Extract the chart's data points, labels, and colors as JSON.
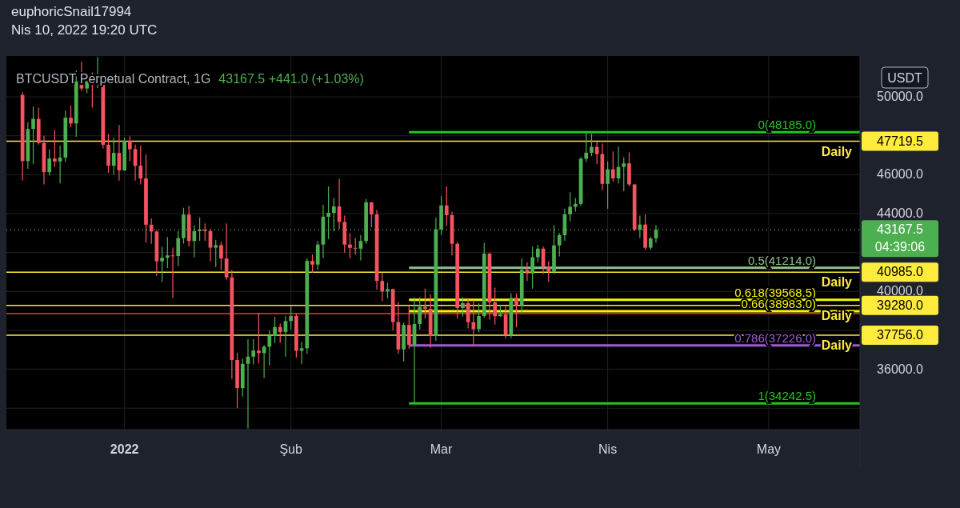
{
  "chart_data": {
    "type": "candlestick",
    "title": "BTCUSDT Perpetual Contract, 1G",
    "subtitle": "43167.5  +441.0 (+1.03%)",
    "x": [
      "2021-12-13",
      "2021-12-14",
      "2021-12-15",
      "2021-12-16",
      "2021-12-17",
      "2021-12-18",
      "2021-12-19",
      "2021-12-20",
      "2021-12-21",
      "2021-12-22",
      "2021-12-23",
      "2021-12-24",
      "2021-12-25",
      "2021-12-26",
      "2021-12-27",
      "2021-12-28",
      "2021-12-29",
      "2021-12-30",
      "2021-12-31",
      "2022-01-01",
      "2022-01-02",
      "2022-01-03",
      "2022-01-04",
      "2022-01-05",
      "2022-01-06",
      "2022-01-07",
      "2022-01-08",
      "2022-01-09",
      "2022-01-10",
      "2022-01-11",
      "2022-01-12",
      "2022-01-13",
      "2022-01-14",
      "2022-01-15",
      "2022-01-16",
      "2022-01-17",
      "2022-01-18",
      "2022-01-19",
      "2022-01-20",
      "2022-01-21",
      "2022-01-22",
      "2022-01-23",
      "2022-01-24",
      "2022-01-25",
      "2022-01-26",
      "2022-01-27",
      "2022-01-28",
      "2022-01-29",
      "2022-01-30",
      "2022-01-31",
      "2022-02-01",
      "2022-02-02",
      "2022-02-03",
      "2022-02-04",
      "2022-02-05",
      "2022-02-06",
      "2022-02-07",
      "2022-02-08",
      "2022-02-09",
      "2022-02-10",
      "2022-02-11",
      "2022-02-12",
      "2022-02-13",
      "2022-02-14",
      "2022-02-15",
      "2022-02-16",
      "2022-02-17",
      "2022-02-18",
      "2022-02-19",
      "2022-02-20",
      "2022-02-21",
      "2022-02-22",
      "2022-02-23",
      "2022-02-24",
      "2022-02-25",
      "2022-02-26",
      "2022-02-27",
      "2022-02-28",
      "2022-03-01",
      "2022-03-02",
      "2022-03-03",
      "2022-03-04",
      "2022-03-05",
      "2022-03-06",
      "2022-03-07",
      "2022-03-08",
      "2022-03-09",
      "2022-03-10",
      "2022-03-11",
      "2022-03-12",
      "2022-03-13",
      "2022-03-14",
      "2022-03-15",
      "2022-03-16",
      "2022-03-17",
      "2022-03-18",
      "2022-03-19",
      "2022-03-20",
      "2022-03-21",
      "2022-03-22",
      "2022-03-23",
      "2022-03-24",
      "2022-03-25",
      "2022-03-26",
      "2022-03-27",
      "2022-03-28",
      "2022-03-29",
      "2022-03-30",
      "2022-03-31",
      "2022-04-01",
      "2022-04-02",
      "2022-04-03",
      "2022-04-04",
      "2022-04-05",
      "2022-04-06",
      "2022-04-07",
      "2022-04-08",
      "2022-04-09",
      "2022-04-10"
    ],
    "ohlc": [
      [
        50100,
        50250,
        45700,
        46700
      ],
      [
        46700,
        48700,
        46300,
        48350
      ],
      [
        48350,
        49500,
        46550,
        48870
      ],
      [
        48870,
        49450,
        47550,
        47630
      ],
      [
        47630,
        48000,
        45500,
        46130
      ],
      [
        46130,
        47300,
        45950,
        46830
      ],
      [
        46830,
        48300,
        46400,
        46680
      ],
      [
        46680,
        47500,
        45550,
        46880
      ],
      [
        46880,
        49300,
        46650,
        48930
      ],
      [
        48930,
        49550,
        48450,
        48630
      ],
      [
        48630,
        51350,
        47950,
        50800
      ],
      [
        50800,
        51800,
        50300,
        50430
      ],
      [
        50430,
        51150,
        50200,
        50800
      ],
      [
        50800,
        51250,
        49450,
        50640
      ],
      [
        50640,
        52050,
        50450,
        50700
      ],
      [
        50700,
        50700,
        47350,
        47540
      ],
      [
        47540,
        48100,
        46100,
        46460
      ],
      [
        46460,
        47900,
        46000,
        47120
      ],
      [
        47120,
        48550,
        45700,
        46220
      ],
      [
        46220,
        47900,
        46200,
        47740
      ],
      [
        47740,
        47980,
        46700,
        47310
      ],
      [
        47310,
        47550,
        45700,
        46460
      ],
      [
        46460,
        47500,
        45500,
        45810
      ],
      [
        45810,
        47050,
        42500,
        43430
      ],
      [
        43430,
        43750,
        42450,
        43080
      ],
      [
        43080,
        43150,
        40800,
        41550
      ],
      [
        41550,
        42300,
        40500,
        41730
      ],
      [
        41730,
        42800,
        41200,
        41850
      ],
      [
        41850,
        42250,
        39650,
        41820
      ],
      [
        41820,
        43100,
        41300,
        42740
      ],
      [
        42740,
        44300,
        42450,
        43950
      ],
      [
        43950,
        44400,
        42300,
        42590
      ],
      [
        42590,
        43400,
        41750,
        43100
      ],
      [
        43100,
        43800,
        42600,
        43180
      ],
      [
        43180,
        43500,
        42600,
        43110
      ],
      [
        43110,
        43200,
        41550,
        42250
      ],
      [
        42250,
        42650,
        41250,
        42380
      ],
      [
        42380,
        42550,
        41100,
        41690
      ],
      [
        41690,
        43500,
        40600,
        40720
      ],
      [
        40720,
        41100,
        35500,
        36480
      ],
      [
        36480,
        36850,
        34000,
        35030
      ],
      [
        35030,
        36550,
        34600,
        36280
      ],
      [
        36280,
        37550,
        32950,
        36650
      ],
      [
        36650,
        37550,
        36250,
        36960
      ],
      [
        36960,
        38900,
        36300,
        36830
      ],
      [
        36830,
        37250,
        35550,
        37160
      ],
      [
        37160,
        38000,
        36200,
        37710
      ],
      [
        37710,
        38700,
        37350,
        38170
      ],
      [
        38170,
        38350,
        37350,
        37920
      ],
      [
        37920,
        38750,
        36650,
        38480
      ],
      [
        38480,
        39250,
        38050,
        38740
      ],
      [
        38740,
        38850,
        36600,
        36950
      ],
      [
        36950,
        37400,
        36250,
        37080
      ],
      [
        37080,
        41700,
        36800,
        41570
      ],
      [
        41570,
        41900,
        40950,
        41380
      ],
      [
        41380,
        42600,
        41100,
        42410
      ],
      [
        42410,
        44450,
        41700,
        43840
      ],
      [
        43840,
        45400,
        42700,
        44040
      ],
      [
        44040,
        44800,
        43100,
        44370
      ],
      [
        44370,
        45800,
        43200,
        43570
      ],
      [
        43570,
        43900,
        42000,
        42410
      ],
      [
        42410,
        43000,
        41700,
        42240
      ],
      [
        42240,
        42750,
        41900,
        42200
      ],
      [
        42200,
        42900,
        41600,
        42590
      ],
      [
        42590,
        44750,
        42450,
        44580
      ],
      [
        44580,
        44600,
        43300,
        43960
      ],
      [
        43960,
        44200,
        40100,
        40540
      ],
      [
        40540,
        40950,
        39500,
        40000
      ],
      [
        40000,
        40450,
        39650,
        40120
      ],
      [
        40120,
        40150,
        38000,
        38430
      ],
      [
        38430,
        39450,
        36800,
        37020
      ],
      [
        37020,
        38400,
        36400,
        38280
      ],
      [
        38280,
        39250,
        37050,
        37260
      ],
      [
        37260,
        39700,
        34242.5,
        38330
      ],
      [
        38330,
        39700,
        38050,
        39210
      ],
      [
        39210,
        40150,
        38600,
        39110
      ],
      [
        39110,
        39850,
        37100,
        37710
      ],
      [
        37710,
        43800,
        37450,
        43190
      ],
      [
        43190,
        44900,
        42900,
        44420
      ],
      [
        44420,
        45400,
        43350,
        43920
      ],
      [
        43920,
        44100,
        41850,
        42450
      ],
      [
        42450,
        42550,
        38600,
        39150
      ],
      [
        39150,
        39700,
        38700,
        39400
      ],
      [
        39400,
        39650,
        38100,
        38420
      ],
      [
        38420,
        39550,
        37200,
        38060
      ],
      [
        38060,
        39400,
        37900,
        38740
      ],
      [
        38740,
        42500,
        38650,
        41940
      ],
      [
        41940,
        42000,
        38550,
        39440
      ],
      [
        39440,
        40200,
        38300,
        38730
      ],
      [
        38730,
        39300,
        38700,
        38810
      ],
      [
        38810,
        39250,
        37600,
        37780
      ],
      [
        37780,
        39900,
        37600,
        39670
      ],
      [
        39670,
        39900,
        38150,
        39280
      ],
      [
        39280,
        41700,
        38900,
        41110
      ],
      [
        41110,
        41500,
        40550,
        40920
      ],
      [
        40920,
        42300,
        40150,
        41760
      ],
      [
        41760,
        42400,
        41500,
        42200
      ],
      [
        42200,
        42300,
        40900,
        41260
      ],
      [
        41260,
        41550,
        40500,
        41000
      ],
      [
        41000,
        43400,
        40900,
        42370
      ],
      [
        42370,
        43000,
        41800,
        42890
      ],
      [
        42890,
        44250,
        42600,
        43960
      ],
      [
        43960,
        45100,
        43600,
        44350
      ],
      [
        44350,
        44800,
        44100,
        44500
      ],
      [
        44500,
        46900,
        44400,
        46820
      ],
      [
        46820,
        48185,
        46650,
        47130
      ],
      [
        47130,
        48100,
        46950,
        47430
      ],
      [
        47430,
        47700,
        46550,
        47060
      ],
      [
        47060,
        47600,
        45200,
        45530
      ],
      [
        45530,
        46700,
        44250,
        46280
      ],
      [
        46280,
        47200,
        45650,
        45810
      ],
      [
        45810,
        47450,
        45550,
        46400
      ],
      [
        46400,
        46900,
        45150,
        46580
      ],
      [
        46580,
        47150,
        45400,
        45500
      ],
      [
        45500,
        45500,
        43100,
        43170
      ],
      [
        43170,
        43900,
        42750,
        43440
      ],
      [
        43440,
        43950,
        42150,
        42250
      ],
      [
        42250,
        42800,
        42150,
        42726.5
      ],
      [
        42726.5,
        43400,
        42500,
        43167.5
      ]
    ],
    "colors": [
      "#f7525f",
      "#4caf50",
      "#4caf50",
      "#f7525f",
      "#f7525f",
      "#4caf50",
      "#f7525f",
      "#4caf50",
      "#4caf50",
      "#f7525f",
      "#4caf50",
      "#f7525f",
      "#4caf50",
      "#f7525f",
      "#4caf50",
      "#f7525f",
      "#f7525f",
      "#4caf50",
      "#f7525f",
      "#4caf50",
      "#f7525f",
      "#f7525f",
      "#f7525f",
      "#f7525f",
      "#f7525f",
      "#f7525f",
      "#4caf50",
      "#4caf50",
      "#f7525f",
      "#4caf50",
      "#4caf50",
      "#f7525f",
      "#4caf50",
      "#4caf50",
      "#f7525f",
      "#f7525f",
      "#4caf50",
      "#f7525f",
      "#f7525f",
      "#f7525f",
      "#f7525f",
      "#4caf50",
      "#4caf50",
      "#4caf50",
      "#f7525f",
      "#4caf50",
      "#4caf50",
      "#4caf50",
      "#f7525f",
      "#4caf50",
      "#4caf50",
      "#f7525f",
      "#4caf50",
      "#4caf50",
      "#f7525f",
      "#4caf50",
      "#4caf50",
      "#4caf50",
      "#4caf50",
      "#f7525f",
      "#f7525f",
      "#f7525f",
      "#f7525f",
      "#4caf50",
      "#4caf50",
      "#f7525f",
      "#f7525f",
      "#f7525f",
      "#4caf50",
      "#f7525f",
      "#f7525f",
      "#4caf50",
      "#f7525f",
      "#4caf50",
      "#4caf50",
      "#f7525f",
      "#f7525f",
      "#4caf50",
      "#4caf50",
      "#f7525f",
      "#f7525f",
      "#f7525f",
      "#4caf50",
      "#f7525f",
      "#f7525f",
      "#4caf50",
      "#4caf50",
      "#f7525f",
      "#f7525f",
      "#4caf50",
      "#f7525f",
      "#4caf50",
      "#f7525f",
      "#4caf50",
      "#f7525f",
      "#4caf50",
      "#4caf50",
      "#f7525f",
      "#f7525f",
      "#4caf50",
      "#4caf50",
      "#4caf50",
      "#4caf50",
      "#4caf50",
      "#4caf50",
      "#4caf50",
      "#4caf50",
      "#f7525f",
      "#f7525f",
      "#4caf50",
      "#f7525f",
      "#4caf50",
      "#4caf50",
      "#f7525f",
      "#f7525f",
      "#4caf50",
      "#f7525f",
      "#4caf50",
      "#4caf50"
    ],
    "series": [
      {
        "type": "line",
        "name": "0(48185.0)",
        "color": "#22c51e",
        "x": [
          "2022-02-23",
          "2022-05-18"
        ],
        "values": [
          48185,
          48185
        ]
      },
      {
        "type": "line",
        "name": "0.5(41214.0)",
        "color": "#8fc08f",
        "x": [
          "2022-02-23",
          "2022-05-18"
        ],
        "values": [
          41214,
          41214
        ]
      },
      {
        "type": "line",
        "name": "0.618(39568.5)",
        "color": "#f5f500",
        "x": [
          "2022-02-23",
          "2022-05-18"
        ],
        "values": [
          39568.5,
          39568.5
        ]
      },
      {
        "type": "line",
        "name": "0.66(38983.0)",
        "color": "#f5f500",
        "x": [
          "2022-02-23",
          "2022-05-18"
        ],
        "values": [
          38983,
          38983
        ]
      },
      {
        "type": "line",
        "name": "0.786(37226.0)",
        "color": "#9c5bd6",
        "x": [
          "2022-02-23",
          "2022-05-18"
        ],
        "values": [
          37226,
          37226
        ]
      },
      {
        "type": "line",
        "name": "1(34242.5)",
        "color": "#22c51e",
        "x": [
          "2022-02-23",
          "2022-05-18"
        ],
        "values": [
          34242.5,
          34242.5
        ]
      }
    ],
    "ref_lines": [
      {
        "axis": "y",
        "value": 47719.5,
        "label": "47719.5",
        "color": "#ffeb3b"
      },
      {
        "axis": "y",
        "value": 40985,
        "label": "40985.0",
        "color": "#ffeb3b"
      },
      {
        "axis": "y",
        "value": 39280,
        "label": "39280.0",
        "color": "#ffeb3b"
      },
      {
        "axis": "y",
        "value": 37756,
        "label": "37756.0",
        "color": "#ffeb3b"
      },
      {
        "axis": "y",
        "value": 38865,
        "label": null,
        "color": "#f23645"
      },
      {
        "axis": "y",
        "value": 43167.5,
        "label": "43167.5",
        "color": "#4caf50",
        "line_style": "dotted"
      }
    ],
    "annotations": [
      "euphoricSnail17994",
      "Nis 10, 2022 19:20 UTC",
      "USDT",
      "04:39:06",
      {
        "text": "Daily",
        "y": 47719.5
      },
      {
        "text": "Daily",
        "y": 40985
      },
      {
        "text": "Daily",
        "y": 39280
      },
      {
        "text": "Daily",
        "y": 37756
      }
    ],
    "xlim": [
      "2021-12-10",
      "2022-05-18"
    ],
    "xticks": [
      {
        "value": "2022-01-01",
        "label": "2022"
      },
      {
        "value": "2022-02-01",
        "label": "Şub"
      },
      {
        "value": "2022-03-01",
        "label": "Mar"
      },
      {
        "value": "2022-04-01",
        "label": "Nis"
      },
      {
        "value": "2022-05-01",
        "label": "May"
      }
    ],
    "ylim": [
      32900,
      52100
    ],
    "yticks": [
      {
        "value": 34000,
        "label": null
      },
      {
        "value": 36000,
        "label": "36000.0"
      },
      {
        "value": 38000,
        "label": null
      },
      {
        "value": 40000,
        "label": "40000.0"
      },
      {
        "value": 42000,
        "label": null
      },
      {
        "value": 44000,
        "label": "44000.0"
      },
      {
        "value": 46000,
        "label": "46000.0"
      },
      {
        "value": 48000,
        "label": null
      },
      {
        "value": 50000,
        "label": "50000.0"
      }
    ],
    "grid": true
  }
}
